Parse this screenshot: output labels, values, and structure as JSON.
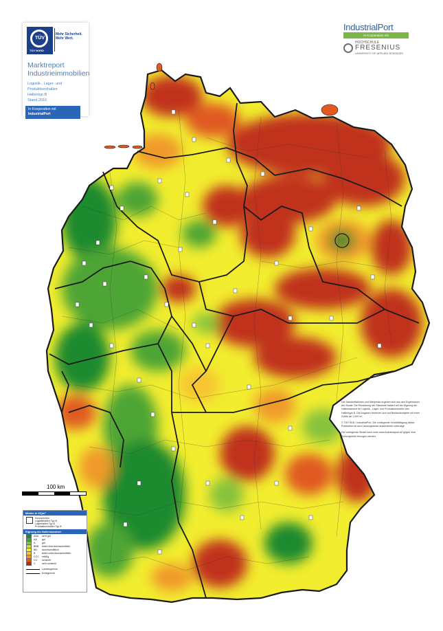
{
  "tuv": {
    "logo_text": "TÜV",
    "logo_sub": "TÜV NORD",
    "slogan_1": "Mehr Sicherheit.",
    "slogan_2": "Mehr Wert.",
    "title_1": "Marktreport",
    "title_2": "Industrieimmobilien",
    "line_1": "Logistik-, Lager- und Produktionshallen",
    "line_2": "Hallentyp B",
    "line_3": "Stand 2016",
    "koop_1": "In Kooperation mit",
    "koop_2": "IndustrialPort"
  },
  "industrialport": {
    "name": "IndustrialPort",
    "koop": "In Kooperation mit",
    "hochschule": "HOCHSCHULE",
    "fresenius": "FRESENIUS",
    "sub": "UNIVERSITY OF APPLIED SCIENCES"
  },
  "scale": {
    "label": "100 km"
  },
  "legend": {
    "header_1": "Mieten in €/Qm²",
    "symbol_lines": [
      "Kennzeichen",
      "Logistikhallen Typ B",
      "Lagerhallen Typ B",
      "Produktionshallen Typ B"
    ],
    "header_2": "Eignung als Hallenstandort",
    "classes": [
      {
        "code": "AAA",
        "label": "sehr gut",
        "color": "#1f8a2e"
      },
      {
        "code": "AA",
        "label": "gut",
        "color": "#4ea535"
      },
      {
        "code": "A",
        "label": "gut",
        "color": "#86c23c"
      },
      {
        "code": "BBB",
        "label": "leicht überdurchschnittlich",
        "color": "#c9de3d"
      },
      {
        "code": "BB",
        "label": "durchschnittlich",
        "color": "#f2ed2f"
      },
      {
        "code": "B",
        "label": "leicht unterdurchschnittlich",
        "color": "#f7c531"
      },
      {
        "code": "CCC",
        "label": "mäßig",
        "color": "#f09a2a"
      },
      {
        "code": "CC",
        "label": "schlecht",
        "color": "#e05a22"
      },
      {
        "code": "C",
        "label": "sehr schlecht",
        "color": "#b8281a"
      }
    ],
    "line_1": "Landesgrenze",
    "line_2": "Kreisgrenze"
  },
  "info": {
    "p1": "Die Standortfaktoren und Mietpreise ergeben sich aus den Ergebnissen der Studie. Die Einordnung der Standorte basiert auf der Eignung als Hallenstandort für Logistik-, Lager- und Produktionshallen des Hallentyps B. Die Angaben beziehen sich auf Bestandsobjekte mit einer Größe ab 1.000 m².",
    "p2": "© TÜV SÜD / IndustrialPort. Die vorliegende Vervielfältigung dieser Publikation ist auch auszugsweise ausdrücklich untersagt.",
    "p3": "Die vorliegende Studie kann unter www.industrialport.de gegen eine Schutzgebühr bezogen werden."
  },
  "colors": {
    "green_dark": "#1f8a2e",
    "green": "#4ea535",
    "yellow": "#f2ed2f",
    "orange": "#f09a2a",
    "red": "#c0301c",
    "border": "#1a1a1a",
    "tuv_blue": "#1b3f88"
  }
}
